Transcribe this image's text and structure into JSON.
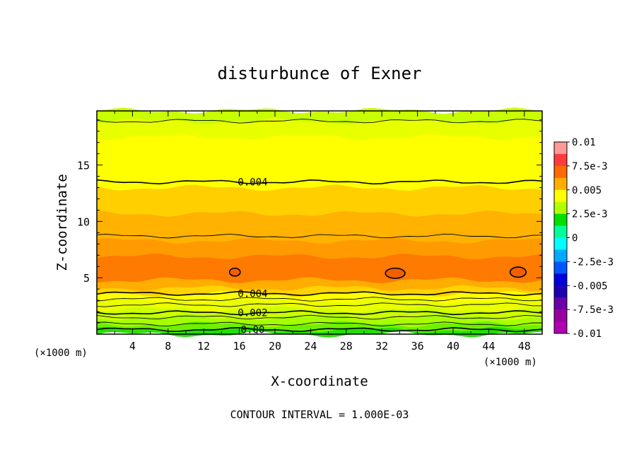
{
  "chart_data": {
    "type": "heatmap",
    "subtype": "filled-contour",
    "title": "disturbunce of Exner",
    "xlabel": "X-coordinate",
    "ylabel": "Z-coordinate",
    "x_unit": "(×1000 m)",
    "z_unit": "(×1000 m)",
    "xlim": [
      0,
      50
    ],
    "ylim": [
      0,
      19.8
    ],
    "x_ticks": [
      4,
      8,
      12,
      16,
      20,
      24,
      28,
      32,
      36,
      40,
      44,
      48
    ],
    "y_ticks": [
      5,
      10,
      15
    ],
    "contour_interval_text": "CONTOUR INTERVAL = 1.000E-03",
    "colorbar": {
      "min": -0.01,
      "max": 0.01,
      "step": 0.00125,
      "labels": [
        "0.01",
        "7.5e-3",
        "0.005",
        "2.5e-3",
        "0",
        "-2.5e-3",
        "-0.005",
        "-7.5e-3",
        "-0.01"
      ],
      "colors": [
        "#ff9a9a",
        "#ff3c3c",
        "#ff6a00",
        "#ffad00",
        "#ffff00",
        "#b2ff00",
        "#00e000",
        "#00ff99",
        "#00ffff",
        "#00aaff",
        "#0055ff",
        "#0000dd",
        "#1c00b0",
        "#6a00a8",
        "#9a00a0",
        "#b000b0"
      ]
    },
    "bands": [
      {
        "z0": 0.0,
        "z1": 0.4,
        "value_range": [
          0.0,
          0.001
        ],
        "color": "#22e000"
      },
      {
        "z0": 0.4,
        "z1": 0.9,
        "value_range": [
          0.001,
          0.0015
        ],
        "color": "#6ef000"
      },
      {
        "z0": 0.9,
        "z1": 1.5,
        "value_range": [
          0.0015,
          0.002
        ],
        "color": "#a6ff00"
      },
      {
        "z0": 1.5,
        "z1": 2.2,
        "value_range": [
          0.002,
          0.0025
        ],
        "color": "#ccff00"
      },
      {
        "z0": 2.2,
        "z1": 3.0,
        "value_range": [
          0.0025,
          0.003
        ],
        "color": "#eaff00"
      },
      {
        "z0": 3.0,
        "z1": 3.6,
        "value_range": [
          0.003,
          0.0035
        ],
        "color": "#ffff00"
      },
      {
        "z0": 3.6,
        "z1": 4.1,
        "value_range": [
          0.0035,
          0.004
        ],
        "color": "#ffd200"
      },
      {
        "z0": 4.1,
        "z1": 4.8,
        "value_range": [
          0.004,
          0.005
        ],
        "color": "#ffad00"
      },
      {
        "z0": 4.8,
        "z1": 6.9,
        "value_range": [
          0.005,
          0.006
        ],
        "color": "#ff7a00"
      },
      {
        "z0": 6.9,
        "z1": 8.3,
        "value_range": [
          0.0045,
          0.005
        ],
        "color": "#ff9a00"
      },
      {
        "z0": 8.3,
        "z1": 10.7,
        "value_range": [
          0.004,
          0.0045
        ],
        "color": "#ffb200"
      },
      {
        "z0": 10.7,
        "z1": 13.0,
        "value_range": [
          0.0035,
          0.004
        ],
        "color": "#ffcf00"
      },
      {
        "z0": 13.0,
        "z1": 17.5,
        "value_range": [
          0.003,
          0.0035
        ],
        "color": "#ffff00"
      },
      {
        "z0": 17.5,
        "z1": 18.9,
        "value_range": [
          0.0025,
          0.003
        ],
        "color": "#e8ff00"
      },
      {
        "z0": 18.9,
        "z1": 19.8,
        "value_range": [
          0.002,
          0.0025
        ],
        "color": "#c8ff00"
      }
    ],
    "contour_lines": [
      {
        "z": 0.4,
        "level": 0.0
      },
      {
        "z": 0.9,
        "level": null
      },
      {
        "z": 1.5,
        "level": null
      },
      {
        "z": 1.9,
        "level": 0.002
      },
      {
        "z": 2.6,
        "level": null
      },
      {
        "z": 3.1,
        "level": null
      },
      {
        "z": 3.6,
        "level": 0.004
      },
      {
        "z": 8.7,
        "level": null
      },
      {
        "z": 13.5,
        "level": 0.004
      },
      {
        "z": 18.9,
        "level": null
      }
    ],
    "contour_labels": [
      {
        "text": "0.00",
        "x": 17.5,
        "z": 0.4
      },
      {
        "text": "0.002",
        "x": 17.5,
        "z": 1.9
      },
      {
        "text": "0.004",
        "x": 17.5,
        "z": 3.6
      },
      {
        "text": "0.004",
        "x": 17.5,
        "z": 13.5
      }
    ],
    "closed_contours": [
      {
        "x": 15.5,
        "z": 5.5,
        "rx": 0.6,
        "rz": 0.35
      },
      {
        "x": 33.5,
        "z": 5.4,
        "rx": 1.1,
        "rz": 0.45
      },
      {
        "x": 47.3,
        "z": 5.5,
        "rx": 0.9,
        "rz": 0.45
      }
    ]
  }
}
